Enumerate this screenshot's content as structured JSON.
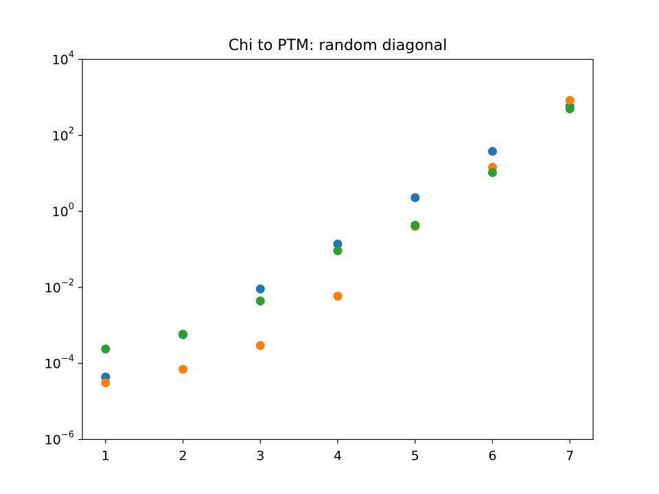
{
  "chart_data": {
    "type": "scatter",
    "title": "Chi to PTM: random diagonal",
    "xlabel": "",
    "ylabel": "",
    "yscale": "log",
    "xlim": [
      0.7,
      7.3
    ],
    "ylim": [
      1e-06,
      10000.0
    ],
    "x_ticks": [
      1,
      2,
      3,
      4,
      5,
      6,
      7
    ],
    "y_ticks": [
      {
        "value": 1e-06,
        "base": "10",
        "exp": "−6"
      },
      {
        "value": 0.0001,
        "base": "10",
        "exp": "−4"
      },
      {
        "value": 0.01,
        "base": "10",
        "exp": "−2"
      },
      {
        "value": 1,
        "base": "10",
        "exp": "0"
      },
      {
        "value": 100,
        "base": "10",
        "exp": "2"
      },
      {
        "value": 10000,
        "base": "10",
        "exp": "4"
      }
    ],
    "grid": false,
    "series": [
      {
        "color": "#1f77b4",
        "x": [
          1,
          2,
          3,
          4,
          5,
          6,
          7
        ],
        "y": [
          4.4e-05,
          0.00057,
          0.0091,
          0.138,
          2.3,
          38,
          580
        ]
      },
      {
        "color": "#ff7f0e",
        "x": [
          1,
          2,
          3,
          4,
          5,
          6,
          7
        ],
        "y": [
          3.1e-05,
          7e-05,
          0.000295,
          0.0059,
          0.4,
          14.5,
          830
        ]
      },
      {
        "color": "#2ca02c",
        "x": [
          1,
          2,
          3,
          4,
          5,
          6,
          7
        ],
        "y": [
          0.00024,
          0.00059,
          0.0044,
          0.092,
          0.43,
          10.5,
          500
        ]
      }
    ]
  }
}
